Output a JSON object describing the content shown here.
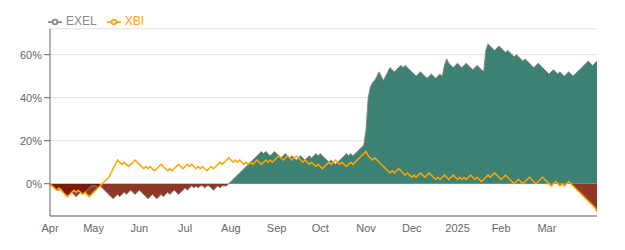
{
  "chart_data": {
    "type": "area",
    "categories": [
      "Apr",
      null,
      null,
      null,
      null,
      null,
      null,
      null,
      null,
      null,
      null,
      null,
      null,
      null,
      null,
      null,
      null,
      null,
      null,
      null,
      "May",
      null,
      null,
      null,
      null,
      null,
      null,
      null,
      null,
      null,
      null,
      null,
      null,
      null,
      null,
      null,
      null,
      null,
      null,
      null,
      null,
      "Jun",
      null,
      null,
      null,
      null,
      null,
      null,
      null,
      null,
      null,
      null,
      null,
      null,
      null,
      null,
      null,
      null,
      null,
      null,
      null,
      null,
      "Jul",
      null,
      null,
      null,
      null,
      null,
      null,
      null,
      null,
      null,
      null,
      null,
      null,
      null,
      null,
      null,
      null,
      null,
      null,
      null,
      null,
      "Aug",
      null,
      null,
      null,
      null,
      null,
      null,
      null,
      null,
      null,
      null,
      null,
      null,
      null,
      null,
      null,
      null,
      null,
      null,
      null,
      null,
      "Sep",
      null,
      null,
      null,
      null,
      null,
      null,
      null,
      null,
      null,
      null,
      null,
      null,
      null,
      null,
      null,
      null,
      null,
      null,
      null,
      "Oct",
      null,
      null,
      null,
      null,
      null,
      null,
      null,
      null,
      null,
      null,
      null,
      null,
      null,
      null,
      null,
      null,
      null,
      null,
      null,
      null,
      "Nov",
      null,
      null,
      null,
      null,
      null,
      null,
      null,
      null,
      null,
      null,
      null,
      null,
      null,
      null,
      null,
      null,
      null,
      null,
      null,
      null,
      "Dec",
      null,
      null,
      null,
      null,
      null,
      null,
      null,
      null,
      null,
      null,
      null,
      null,
      null,
      null,
      null,
      null,
      null,
      null,
      null,
      null,
      "2025",
      null,
      null,
      null,
      null,
      null,
      null,
      null,
      null,
      null,
      null,
      null,
      null,
      null,
      null,
      null,
      null,
      null,
      null,
      null,
      "Feb",
      null,
      null,
      null,
      null,
      null,
      null,
      null,
      null,
      null,
      null,
      null,
      null,
      null,
      null,
      null,
      null,
      null,
      null,
      null,
      null,
      "Mar",
      null,
      null,
      null,
      null,
      null,
      null,
      null,
      null,
      null,
      null,
      null,
      null,
      null,
      null,
      null,
      null,
      null,
      null,
      null,
      null,
      null,
      null,
      null
    ],
    "series": [
      {
        "name": "EXEL",
        "color": "#888888",
        "values": [
          -1,
          -1,
          -2,
          -3,
          -3,
          -2,
          -4,
          -5,
          -6,
          -5,
          -4,
          -5,
          -6,
          -5,
          -4,
          -5,
          -4,
          -3,
          -2,
          -1,
          -1,
          -1,
          -2,
          -1,
          -2,
          -3,
          -4,
          -5,
          -6,
          -7,
          -6,
          -5,
          -6,
          -5,
          -4,
          -5,
          -4,
          -3,
          -4,
          -5,
          -4,
          -3,
          -4,
          -5,
          -6,
          -7,
          -6,
          -5,
          -6,
          -7,
          -6,
          -5,
          -6,
          -5,
          -4,
          -5,
          -4,
          -3,
          -4,
          -5,
          -4,
          -3,
          -2,
          -3,
          -2,
          -1,
          -2,
          -1,
          -2,
          -1,
          -1,
          -2,
          -1,
          -1,
          -2,
          -3,
          -2,
          -1,
          -2,
          -1,
          -1,
          -1,
          0,
          1,
          2,
          3,
          4,
          5,
          6,
          7,
          8,
          9,
          10,
          11,
          12,
          13,
          14,
          15,
          14,
          15,
          14,
          13,
          14,
          15,
          14,
          13,
          12,
          13,
          14,
          13,
          12,
          13,
          12,
          11,
          12,
          13,
          12,
          11,
          12,
          13,
          12,
          13,
          14,
          13,
          14,
          13,
          12,
          11,
          10,
          11,
          10,
          9,
          10,
          11,
          12,
          13,
          14,
          13,
          14,
          13,
          14,
          15,
          16,
          17,
          18,
          25,
          40,
          45,
          47,
          48,
          50,
          52,
          50,
          48,
          50,
          52,
          54,
          53,
          52,
          53,
          54,
          55,
          54,
          55,
          54,
          53,
          52,
          51,
          50,
          51,
          52,
          51,
          50,
          49,
          50,
          51,
          50,
          49,
          50,
          51,
          50,
          55,
          58,
          56,
          55,
          54,
          55,
          56,
          55,
          54,
          55,
          56,
          55,
          54,
          53,
          54,
          55,
          54,
          53,
          52,
          62,
          65,
          64,
          63,
          62,
          63,
          64,
          63,
          62,
          61,
          62,
          61,
          60,
          59,
          60,
          59,
          58,
          57,
          58,
          57,
          56,
          55,
          54,
          55,
          56,
          55,
          54,
          53,
          52,
          51,
          52,
          53,
          52,
          51,
          52,
          51,
          50,
          51,
          52,
          51,
          50,
          51,
          52,
          53,
          54,
          55,
          56,
          57,
          56,
          55,
          56,
          57
        ]
      },
      {
        "name": "XBI",
        "color": "#FFA500",
        "values": [
          0,
          -1,
          -2,
          -3,
          -2,
          -3,
          -4,
          -5,
          -6,
          -5,
          -4,
          -3,
          -4,
          -3,
          -4,
          -5,
          -4,
          -5,
          -6,
          -5,
          -4,
          -3,
          -2,
          -1,
          0,
          1,
          2,
          3,
          5,
          7,
          9,
          11,
          10,
          9,
          10,
          9,
          8,
          9,
          10,
          11,
          10,
          9,
          8,
          7,
          8,
          7,
          8,
          7,
          6,
          7,
          8,
          9,
          8,
          7,
          6,
          7,
          6,
          7,
          8,
          9,
          8,
          7,
          8,
          9,
          8,
          9,
          8,
          7,
          8,
          7,
          8,
          7,
          6,
          7,
          8,
          7,
          8,
          9,
          10,
          9,
          10,
          11,
          12,
          11,
          10,
          11,
          10,
          11,
          10,
          9,
          10,
          9,
          10,
          9,
          10,
          11,
          10,
          9,
          10,
          11,
          10,
          11,
          10,
          11,
          12,
          13,
          12,
          11,
          12,
          13,
          12,
          11,
          12,
          13,
          12,
          11,
          10,
          11,
          10,
          9,
          10,
          9,
          8,
          9,
          8,
          7,
          8,
          9,
          10,
          9,
          10,
          11,
          10,
          9,
          10,
          9,
          8,
          9,
          10,
          9,
          10,
          11,
          12,
          13,
          14,
          15,
          13,
          12,
          11,
          12,
          11,
          10,
          9,
          8,
          7,
          6,
          5,
          6,
          5,
          6,
          7,
          6,
          5,
          4,
          5,
          4,
          3,
          4,
          3,
          4,
          5,
          4,
          3,
          4,
          5,
          4,
          3,
          2,
          3,
          2,
          3,
          4,
          3,
          2,
          3,
          4,
          3,
          2,
          3,
          2,
          3,
          2,
          3,
          4,
          3,
          2,
          3,
          2,
          1,
          2,
          3,
          4,
          3,
          4,
          5,
          4,
          3,
          2,
          3,
          4,
          3,
          2,
          1,
          0,
          1,
          2,
          1,
          0,
          1,
          2,
          3,
          2,
          1,
          0,
          1,
          2,
          3,
          2,
          1,
          0,
          -1,
          0,
          1,
          0,
          -1,
          0,
          -1,
          0,
          1,
          0,
          -1,
          -2,
          -3,
          -4,
          -5,
          -6,
          -7,
          -8,
          -9,
          -10,
          -11,
          -13
        ]
      }
    ],
    "ylim": [
      -15,
      72
    ],
    "yticks": [
      {
        "value": 0,
        "label": "0%"
      },
      {
        "value": 20,
        "label": "20%"
      },
      {
        "value": 40,
        "label": "40%"
      },
      {
        "value": 60,
        "label": "60%"
      }
    ],
    "grid": true,
    "legend": "upper left"
  }
}
